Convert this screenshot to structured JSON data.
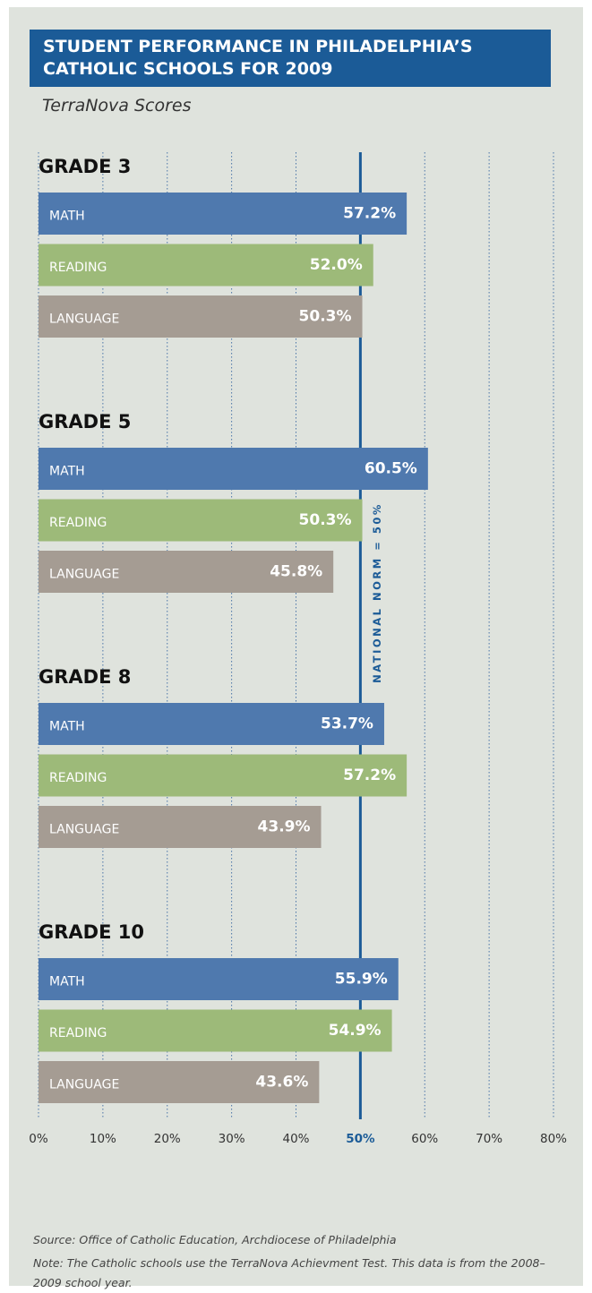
{
  "chart_data": {
    "type": "bar",
    "orientation": "horizontal",
    "title": "STUDENT PERFORMANCE IN PHILADELPHIA’S CATHOLIC SCHOOLS FOR 2009",
    "subtitle": "TerraNova Scores",
    "categories": [
      "GRADE 3",
      "GRADE 5",
      "GRADE 8",
      "GRADE 10"
    ],
    "series": [
      {
        "name": "MATH",
        "color": "#4f79ae",
        "values": [
          57.2,
          60.5,
          53.7,
          55.9
        ],
        "value_labels": [
          "57.2%",
          "60.5%",
          "53.7%",
          "55.9%"
        ]
      },
      {
        "name": "READING",
        "color": "#9dba79",
        "values": [
          52.0,
          50.3,
          57.2,
          54.9
        ],
        "value_labels": [
          "52.0%",
          "50.3%",
          "57.2%",
          "54.9%"
        ]
      },
      {
        "name": "LANGUAGE",
        "color": "#a59c93",
        "values": [
          50.3,
          45.8,
          43.9,
          43.6
        ],
        "value_labels": [
          "50.3%",
          "45.8%",
          "43.9%",
          "43.6%"
        ]
      }
    ],
    "xlim": [
      0,
      80
    ],
    "xticks": [
      {
        "value": 0,
        "label": "0%"
      },
      {
        "value": 10,
        "label": "10%"
      },
      {
        "value": 20,
        "label": "20%"
      },
      {
        "value": 30,
        "label": "30%"
      },
      {
        "value": 40,
        "label": "40%"
      },
      {
        "value": 50,
        "label": "50%"
      },
      {
        "value": 60,
        "label": "60%"
      },
      {
        "value": 70,
        "label": "70%"
      },
      {
        "value": 80,
        "label": "80%"
      }
    ],
    "grid": true,
    "reference_line": {
      "value": 50,
      "label": "NATIONAL NORM = 50%",
      "color": "#1b5b97"
    },
    "source": "Source: Office of Catholic Education, Archdiocese of Philadelphia",
    "note": "Note: The Catholic schools use the TerraNova Achievment Test. This data is from the 2008–2009 school year."
  }
}
